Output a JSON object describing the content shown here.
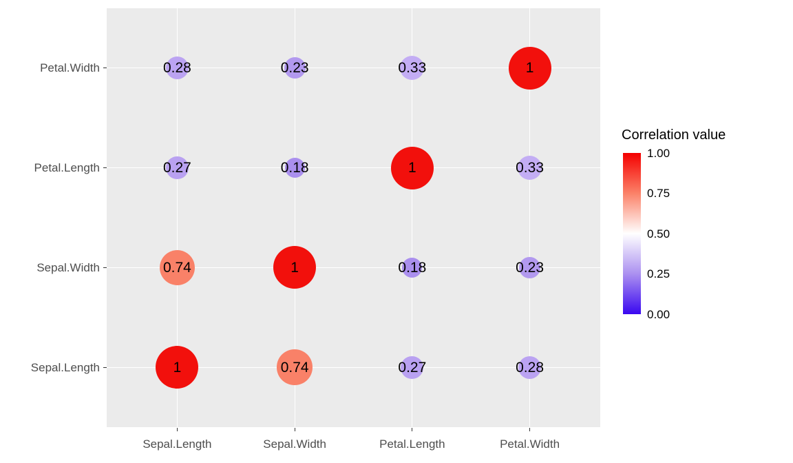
{
  "figure": {
    "background": "#FFFFFF",
    "panel_background": "#EBEBEB",
    "gridline_color": "#FFFFFF",
    "tick_color": "#333333",
    "axis_text_color": "#4D4D4D"
  },
  "chart_data": {
    "type": "scatter",
    "subtype": "correlation-bubble-matrix",
    "title": "",
    "x_categories": [
      "Sepal.Length",
      "Sepal.Width",
      "Petal.Length",
      "Petal.Width"
    ],
    "y_categories": [
      "Sepal.Length",
      "Sepal.Width",
      "Petal.Length",
      "Petal.Width"
    ],
    "value_range": [
      0,
      1
    ],
    "size_encodes": "correlation value",
    "color_encodes": "correlation value",
    "points": [
      {
        "x": 0,
        "y": 0,
        "value": 1,
        "label": "1",
        "color": "#F2100C"
      },
      {
        "x": 1,
        "y": 0,
        "value": 0.74,
        "label": "0.74",
        "color": "#F98168"
      },
      {
        "x": 2,
        "y": 0,
        "value": 0.27,
        "label": "0.27",
        "color": "#B9A1F1"
      },
      {
        "x": 3,
        "y": 0,
        "value": 0.28,
        "label": "0.28",
        "color": "#BBA3F2"
      },
      {
        "x": 0,
        "y": 1,
        "value": 0.74,
        "label": "0.74",
        "color": "#F98168"
      },
      {
        "x": 1,
        "y": 1,
        "value": 1,
        "label": "1",
        "color": "#F2100C"
      },
      {
        "x": 2,
        "y": 1,
        "value": 0.18,
        "label": "0.18",
        "color": "#AA8FEE"
      },
      {
        "x": 3,
        "y": 1,
        "value": 0.23,
        "label": "0.23",
        "color": "#B299EF"
      },
      {
        "x": 0,
        "y": 2,
        "value": 0.27,
        "label": "0.27",
        "color": "#B9A1F1"
      },
      {
        "x": 1,
        "y": 2,
        "value": 0.18,
        "label": "0.18",
        "color": "#AA8FEE"
      },
      {
        "x": 2,
        "y": 2,
        "value": 1,
        "label": "1",
        "color": "#F2100C"
      },
      {
        "x": 3,
        "y": 2,
        "value": 0.33,
        "label": "0.33",
        "color": "#C3ADF4"
      },
      {
        "x": 0,
        "y": 3,
        "value": 0.28,
        "label": "0.28",
        "color": "#BBA3F2"
      },
      {
        "x": 1,
        "y": 3,
        "value": 0.23,
        "label": "0.23",
        "color": "#B299EF"
      },
      {
        "x": 2,
        "y": 3,
        "value": 0.33,
        "label": "0.33",
        "color": "#C3ADF4"
      },
      {
        "x": 3,
        "y": 3,
        "value": 1,
        "label": "1",
        "color": "#F2100C"
      }
    ],
    "legend": {
      "title": "Correlation value",
      "tick_labels": [
        "1.00",
        "0.75",
        "0.50",
        "0.25",
        "0.00"
      ],
      "gradient_top_to_bottom": [
        "#F40000",
        "#FB8168",
        "#FFFFFF",
        "#AB90F0",
        "#3A08F0"
      ],
      "position": "right"
    }
  }
}
